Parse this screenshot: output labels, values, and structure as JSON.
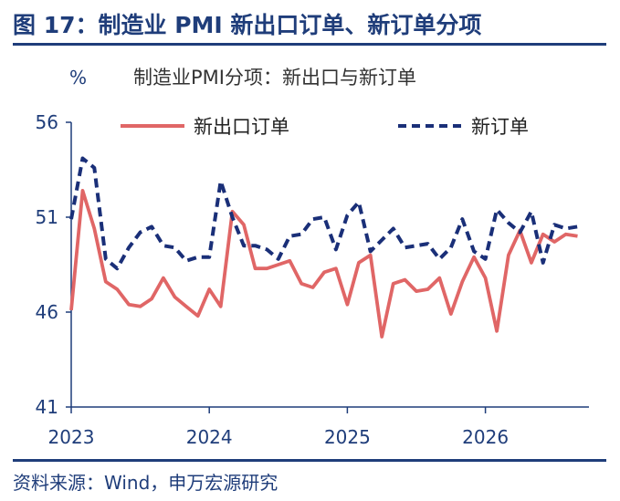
{
  "figure": {
    "title": "图 17：制造业 PMI 新出口订单、新订单分项",
    "source": "资料来源：Wind，申万宏源研究",
    "colors": {
      "accent": "#1f3d7a",
      "export_line": "#e06666",
      "orders_line": "#1a2f78"
    }
  },
  "chart_data": {
    "type": "line",
    "title": "制造业PMI分项：新出口与新订单",
    "ylabel": "%",
    "xlabel": "",
    "ylim": [
      41,
      56
    ],
    "yticks": [
      41,
      46,
      51,
      56
    ],
    "xlim": [
      2023.0,
      2026.75
    ],
    "xticks": [
      2023,
      2024,
      2025,
      2026
    ],
    "xtick_labels": [
      "2023",
      "2024",
      "2025",
      "2026"
    ],
    "legend": "top",
    "grid": false,
    "series": [
      {
        "name": "新出口订单",
        "style": "solid",
        "color": "#e06666",
        "x": [
          2023.0,
          2023.083,
          2023.167,
          2023.25,
          2023.333,
          2023.417,
          2023.5,
          2023.583,
          2023.667,
          2023.75,
          2023.833,
          2023.917,
          2024.0,
          2024.083,
          2024.167,
          2024.25,
          2024.333,
          2024.417,
          2024.5,
          2024.583,
          2024.667,
          2024.75,
          2024.833,
          2024.917,
          2025.0,
          2025.083,
          2025.167,
          2025.25,
          2025.333,
          2025.417,
          2025.5,
          2025.583,
          2025.667,
          2025.75,
          2025.833,
          2025.917,
          2026.0,
          2026.083,
          2026.167,
          2026.25,
          2026.333,
          2026.417,
          2026.5,
          2026.583,
          2026.667
        ],
        "values": [
          46.1,
          52.4,
          50.4,
          47.6,
          47.2,
          46.4,
          46.3,
          46.7,
          47.8,
          46.8,
          46.3,
          45.8,
          47.2,
          46.3,
          51.3,
          50.6,
          48.3,
          48.3,
          48.5,
          48.7,
          47.5,
          47.3,
          48.1,
          48.3,
          46.4,
          48.6,
          49.0,
          44.7,
          47.5,
          47.7,
          47.1,
          47.2,
          47.8,
          45.9,
          47.6,
          48.9,
          47.8,
          45.0,
          49.0,
          50.3,
          48.6,
          50.1,
          49.7,
          50.1,
          50.0
        ]
      },
      {
        "name": "新订单",
        "style": "dashed",
        "color": "#1a2f78",
        "x": [
          2023.0,
          2023.083,
          2023.167,
          2023.25,
          2023.333,
          2023.417,
          2023.5,
          2023.583,
          2023.667,
          2023.75,
          2023.833,
          2023.917,
          2024.0,
          2024.083,
          2024.167,
          2024.25,
          2024.333,
          2024.417,
          2024.5,
          2024.583,
          2024.667,
          2024.75,
          2024.833,
          2024.917,
          2025.0,
          2025.083,
          2025.167,
          2025.25,
          2025.333,
          2025.417,
          2025.5,
          2025.583,
          2025.667,
          2025.75,
          2025.833,
          2025.917,
          2026.0,
          2026.083,
          2026.167,
          2026.25,
          2026.333,
          2026.417,
          2026.5,
          2026.583,
          2026.667
        ],
        "values": [
          50.9,
          54.1,
          53.6,
          48.8,
          48.3,
          49.4,
          50.2,
          50.5,
          49.5,
          49.4,
          48.7,
          48.9,
          48.9,
          52.9,
          51.0,
          49.5,
          49.5,
          49.3,
          48.8,
          50.0,
          50.1,
          50.9,
          51.0,
          49.3,
          51.1,
          51.8,
          49.2,
          49.8,
          50.4,
          49.4,
          49.5,
          49.6,
          48.8,
          49.4,
          50.9,
          49.2,
          48.8,
          51.4,
          50.7,
          50.2,
          51.3,
          48.6,
          50.6,
          50.4,
          50.5
        ]
      }
    ]
  }
}
